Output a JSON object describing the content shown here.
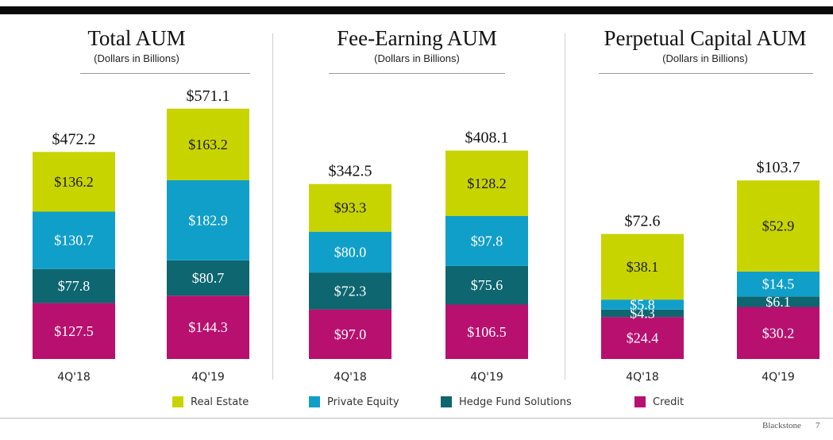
{
  "colors": {
    "real_estate": "#c8d400",
    "private_equity": "#109fc8",
    "hedge_fund_solutions": "#0d6670",
    "credit": "#b8106e"
  },
  "chart_data": [
    {
      "type": "bar",
      "stacked": true,
      "title": "Total AUM",
      "subtitle": "(Dollars in Billions)",
      "categories": [
        "4Q'18",
        "4Q'19"
      ],
      "series": [
        {
          "name": "Credit",
          "values": [
            127.5,
            144.3
          ],
          "labels": [
            "$127.5",
            "$144.3"
          ]
        },
        {
          "name": "Hedge Fund Solutions",
          "values": [
            77.8,
            80.7
          ],
          "labels": [
            "$77.8",
            "$80.7"
          ]
        },
        {
          "name": "Private Equity",
          "values": [
            130.7,
            182.9
          ],
          "labels": [
            "$130.7",
            "$182.9"
          ]
        },
        {
          "name": "Real Estate",
          "values": [
            136.2,
            163.2
          ],
          "labels": [
            "$136.2",
            "$163.2"
          ]
        }
      ],
      "totals": [
        "$472.2",
        "$571.1"
      ]
    },
    {
      "type": "bar",
      "stacked": true,
      "title": "Fee-Earning AUM",
      "subtitle": "(Dollars in Billions)",
      "categories": [
        "4Q'18",
        "4Q'19"
      ],
      "series": [
        {
          "name": "Credit",
          "values": [
            97.0,
            106.5
          ],
          "labels": [
            "$97.0",
            "$106.5"
          ]
        },
        {
          "name": "Hedge Fund Solutions",
          "values": [
            72.3,
            75.6
          ],
          "labels": [
            "$72.3",
            "$75.6"
          ]
        },
        {
          "name": "Private Equity",
          "values": [
            80.0,
            97.8
          ],
          "labels": [
            "$80.0",
            "$97.8"
          ]
        },
        {
          "name": "Real Estate",
          "values": [
            93.3,
            128.2
          ],
          "labels": [
            "$93.3",
            "$128.2"
          ]
        }
      ],
      "totals": [
        "$342.5",
        "$408.1"
      ]
    },
    {
      "type": "bar",
      "stacked": true,
      "title": "Perpetual Capital AUM",
      "subtitle": "(Dollars in Billions)",
      "categories": [
        "4Q'18",
        "4Q'19"
      ],
      "series": [
        {
          "name": "Credit",
          "values": [
            24.4,
            30.2
          ],
          "labels": [
            "$24.4",
            "$30.2"
          ]
        },
        {
          "name": "Hedge Fund Solutions",
          "values": [
            4.3,
            6.1
          ],
          "labels": [
            "$4.3",
            "$6.1"
          ]
        },
        {
          "name": "Private Equity",
          "values": [
            5.8,
            14.5
          ],
          "labels": [
            "$5.8",
            "$14.5"
          ]
        },
        {
          "name": "Real Estate",
          "values": [
            38.1,
            52.9
          ],
          "labels": [
            "$38.1",
            "$52.9"
          ]
        }
      ],
      "totals": [
        "$72.6",
        "$103.7"
      ]
    }
  ],
  "legend": [
    {
      "label": "Real Estate",
      "color": "#c8d400"
    },
    {
      "label": "Private Equity",
      "color": "#109fc8"
    },
    {
      "label": "Hedge Fund Solutions",
      "color": "#0d6670"
    },
    {
      "label": "Credit",
      "color": "#b8106e"
    }
  ],
  "footer": {
    "brand": "Blackstone",
    "page": "7"
  }
}
